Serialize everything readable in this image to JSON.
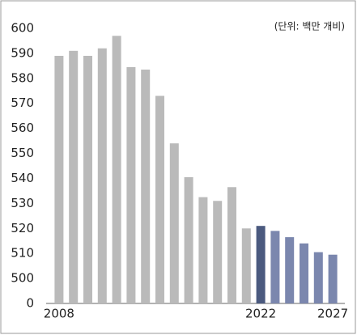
{
  "chart_data": {
    "type": "bar",
    "unit_label": "(단위: 백만 개비)",
    "categories": [
      "2008",
      null,
      null,
      null,
      null,
      null,
      null,
      null,
      null,
      null,
      null,
      null,
      null,
      null,
      "2022",
      null,
      null,
      null,
      null,
      "2027"
    ],
    "values": [
      589,
      591,
      589,
      592,
      597,
      584.5,
      583.5,
      573,
      554,
      540.5,
      532.5,
      531,
      536.5,
      520,
      521,
      519,
      516.5,
      514,
      510.5,
      509.5
    ],
    "colors": [
      "#bababa",
      "#bababa",
      "#bababa",
      "#bababa",
      "#bababa",
      "#bababa",
      "#bababa",
      "#bababa",
      "#bababa",
      "#bababa",
      "#bababa",
      "#bababa",
      "#bababa",
      "#bababa",
      "#4b5a7f",
      "#7b87ae",
      "#7b87ae",
      "#7b87ae",
      "#7b87ae",
      "#7b87ae"
    ],
    "ylim": [
      0,
      600
    ],
    "yticks": [
      0,
      500,
      510,
      520,
      530,
      540,
      550,
      560,
      570,
      580,
      590,
      600
    ]
  }
}
